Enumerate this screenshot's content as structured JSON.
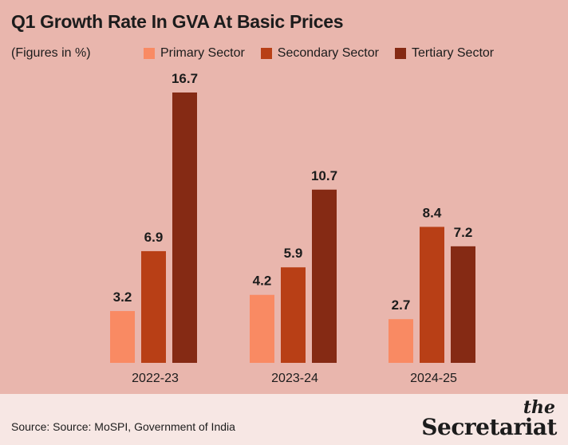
{
  "header": {
    "title": "Q1 Growth Rate In GVA At Basic Prices",
    "subtitle": "(Figures in %)"
  },
  "chart_data": {
    "type": "bar",
    "title": "Q1 Growth Rate In GVA At Basic Prices",
    "subtitle": "(Figures in %)",
    "categories": [
      "2022-23",
      "2023-24",
      "2024-25"
    ],
    "series": [
      {
        "name": "Primary Sector",
        "values": [
          3.2,
          4.2,
          2.7
        ],
        "color": "#f98a63"
      },
      {
        "name": "Secondary Sector",
        "values": [
          6.9,
          5.9,
          8.4
        ],
        "color": "#b83f16"
      },
      {
        "name": "Tertiary Sector",
        "values": [
          16.7,
          10.7,
          7.2
        ],
        "color": "#852a14"
      }
    ],
    "ylim": [
      0,
      18
    ],
    "grid": false,
    "legend_position": "top",
    "data_labels": true
  },
  "footer": {
    "source": "Source: Source: MoSPI, Government of India",
    "logo_the": "the",
    "logo_name": "Secretariat"
  },
  "colors": {
    "background": "#e9b6ad",
    "footer_background": "#f7e7e4"
  }
}
